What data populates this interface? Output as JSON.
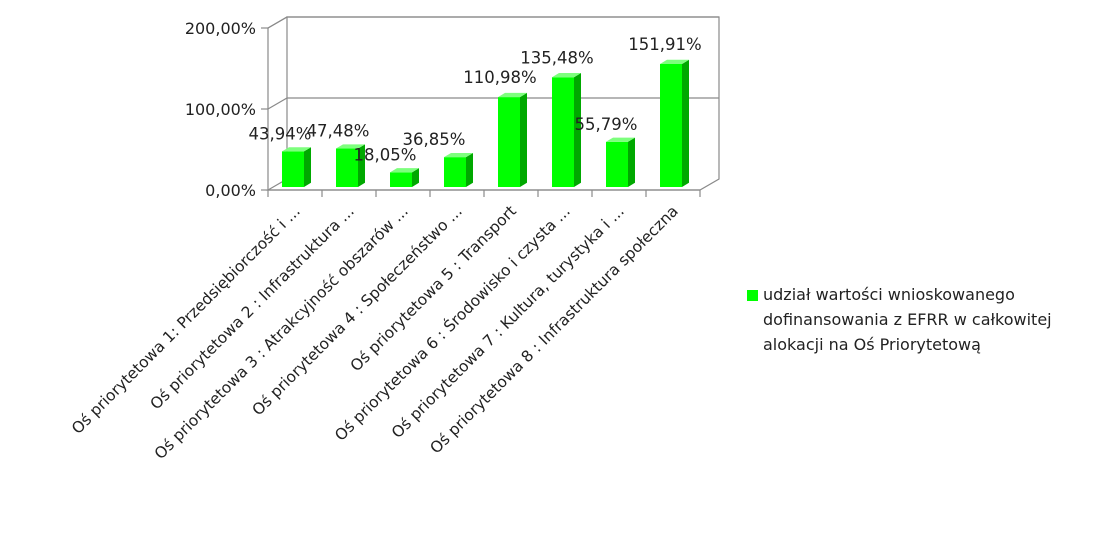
{
  "chart_data": {
    "type": "bar",
    "title": "",
    "xlabel": "",
    "ylabel": "",
    "ylim": [
      0,
      200
    ],
    "y_ticks": [
      "0,00%",
      "100,00%",
      "200,00%"
    ],
    "grid": true,
    "legend_position": "right",
    "categories": [
      "Oś priorytetowa 1: Przedsiębiorczość i ...",
      "Oś priorytetowa 2 : Infrastruktura ...",
      "Oś priorytetowa 3 : Atrakcyjność obszarów ...",
      "Oś priorytetowa 4 : Społeczeństwo ...",
      "Oś priorytetowa 5 : Transport",
      "Oś priorytetowa 6 : Środowisko i czysta ...",
      "Oś priorytetowa 7 : Kultura, turystyka i ...",
      "Oś priorytetowa 8 : Infrastruktura społeczna"
    ],
    "series": [
      {
        "name": "udział wartości  wnioskowanego dofinansowania z EFRR w całkowitej alokacji na Oś Priorytetową",
        "color": "#00ff00",
        "values": [
          43.94,
          47.48,
          18.05,
          36.85,
          110.98,
          135.48,
          55.79,
          151.91
        ],
        "labels": [
          "43,94%",
          "47,48%",
          "18,05%",
          "36,85%",
          "110,98%",
          "135,48%",
          "55,79%",
          "151,91%"
        ]
      }
    ]
  }
}
